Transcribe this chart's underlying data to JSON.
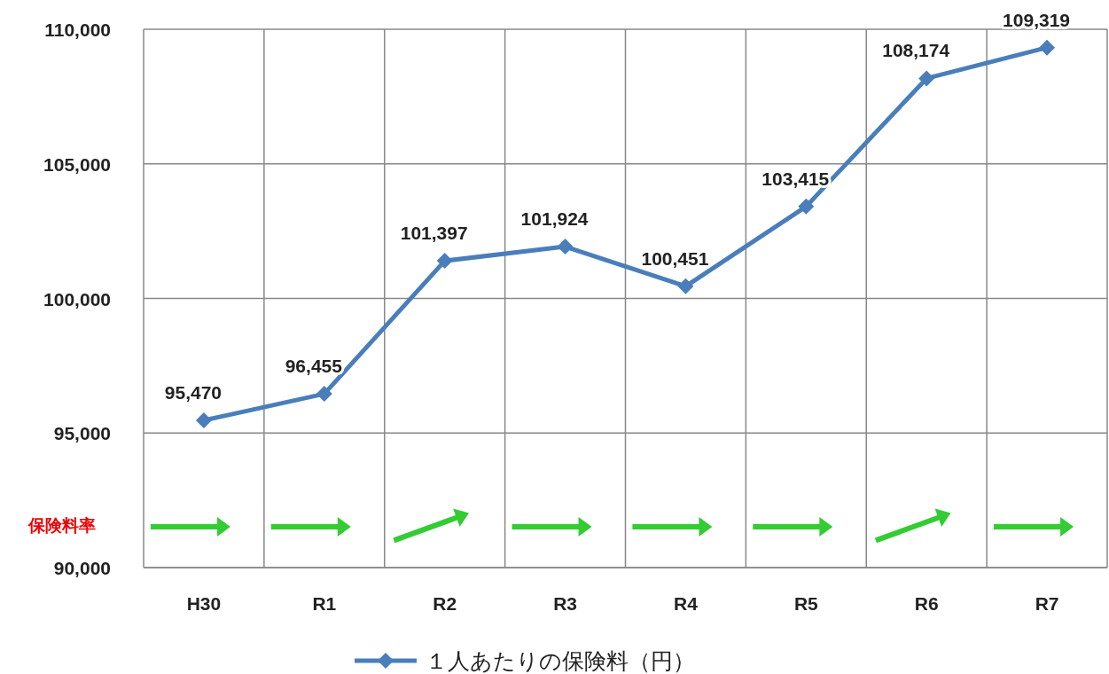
{
  "chart_data": {
    "type": "line",
    "categories": [
      "H30",
      "R1",
      "R2",
      "R3",
      "R4",
      "R5",
      "R6",
      "R7"
    ],
    "series": [
      {
        "name": "１人あたりの保険料（円）",
        "color": "#4a7ebb",
        "values": [
          95470,
          96455,
          101397,
          101924,
          100451,
          103415,
          108174,
          109319
        ],
        "value_labels": [
          "95,470",
          "96,455",
          "101,397",
          "101,924",
          "100,451",
          "103,415",
          "108,174",
          "109,319"
        ]
      }
    ],
    "ylim": [
      90000,
      110000
    ],
    "yticks": [
      {
        "value": 90000,
        "label": "90,000"
      },
      {
        "value": 95000,
        "label": "95,000"
      },
      {
        "value": 100000,
        "label": "100,000"
      },
      {
        "value": 105000,
        "label": "105,000"
      },
      {
        "value": 110000,
        "label": "110,000"
      }
    ],
    "grid": true,
    "legend": "bottom",
    "marker": "diamond",
    "line_style": "solid",
    "annotations": [
      "保険料率"
    ]
  }
}
